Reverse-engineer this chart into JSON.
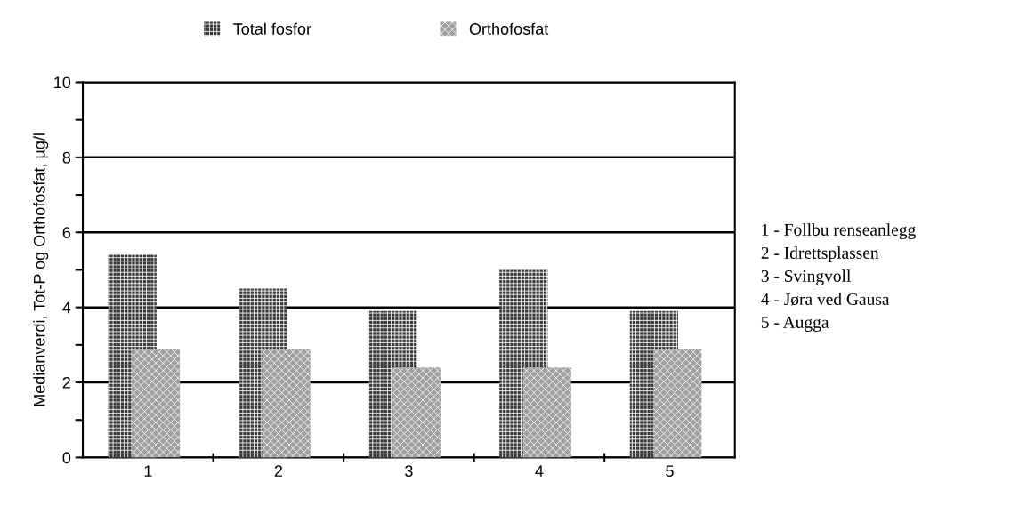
{
  "chart_data": {
    "type": "bar",
    "ylabel": "Medianverdi, Tot-P og Orthofosfat, µg/l",
    "categories": [
      "1",
      "2",
      "3",
      "4",
      "5"
    ],
    "series": [
      {
        "name": "Total fosfor",
        "color": "#3a3a3a",
        "values": [
          5.4,
          4.5,
          3.9,
          5.0,
          3.9
        ]
      },
      {
        "name": "Orthofosfat",
        "color": "#a0a0a0",
        "values": [
          2.9,
          2.9,
          2.4,
          2.4,
          2.9
        ]
      }
    ],
    "ylim": [
      0,
      10
    ],
    "yticks": [
      0,
      {
        "value": 1,
        "label": null
      },
      2,
      {
        "value": 3,
        "label": null
      },
      4,
      {
        "value": 5,
        "label": null
      },
      6,
      {
        "value": 7,
        "label": null
      },
      8,
      {
        "value": 9,
        "label": null
      },
      10
    ],
    "grid": "y",
    "legend": "top",
    "annotations": [
      "1 - Follbu renseanlegg",
      "2 - Idrettsplassen",
      "3 - Svingvoll",
      "4 - Jøra ved Gausa",
      "5 - Augga"
    ]
  }
}
